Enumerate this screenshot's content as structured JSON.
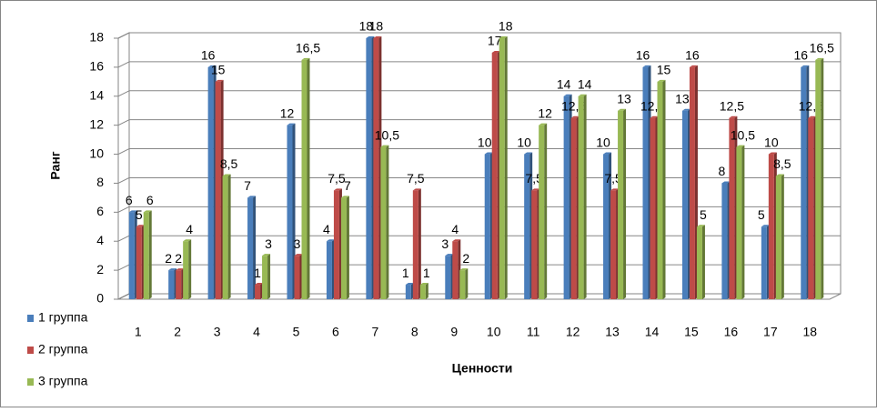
{
  "chart_data": {
    "type": "bar",
    "x_label": "Ценности",
    "y_label": "Ранг",
    "categories": [
      "1",
      "2",
      "3",
      "4",
      "5",
      "6",
      "7",
      "8",
      "9",
      "10",
      "11",
      "12",
      "13",
      "14",
      "15",
      "16",
      "17",
      "18"
    ],
    "series": [
      {
        "name": "1 группа",
        "color": "#4a7ebb",
        "values": [
          6,
          2,
          16,
          7,
          12,
          4,
          18,
          1,
          3,
          10,
          10,
          14,
          10,
          16,
          13,
          8,
          5,
          16
        ],
        "value_labels": [
          "6",
          "2",
          "16",
          "7",
          "12",
          "4",
          "18",
          "1",
          "3",
          "10",
          "10",
          "14",
          "10",
          "16",
          "13",
          "8",
          "5",
          "16"
        ]
      },
      {
        "name": "2 группа",
        "color": "#be4b48",
        "values": [
          5,
          2,
          15,
          1,
          3,
          7.5,
          18,
          7.5,
          4,
          17,
          7.5,
          12.5,
          7.5,
          12.5,
          16,
          12.5,
          10,
          12.5
        ],
        "value_labels": [
          "5",
          "2",
          "15",
          "1",
          "3",
          "7,5",
          "18",
          "7,5",
          "4",
          "17",
          "7,5",
          "12,5",
          "7,5",
          "12,5",
          "16",
          "12,5",
          "10",
          "12,5"
        ]
      },
      {
        "name": "3 группа",
        "color": "#98b954",
        "values": [
          6,
          4,
          8.5,
          3,
          16.5,
          7,
          10.5,
          1,
          2,
          18,
          12,
          14,
          13,
          15,
          5,
          10.5,
          8.5,
          16.5
        ],
        "value_labels": [
          "6",
          "4",
          "8,5",
          "3",
          "16,5",
          "7",
          "10,5",
          "1",
          "2",
          "18",
          "12",
          "14",
          "13",
          "15",
          "5",
          "10,5",
          "8,5",
          "16,5"
        ]
      }
    ],
    "ylim": [
      0,
      18
    ],
    "yticks": [
      0,
      2,
      4,
      6,
      8,
      10,
      12,
      14,
      16,
      18
    ],
    "grid": true,
    "legend": "left"
  }
}
